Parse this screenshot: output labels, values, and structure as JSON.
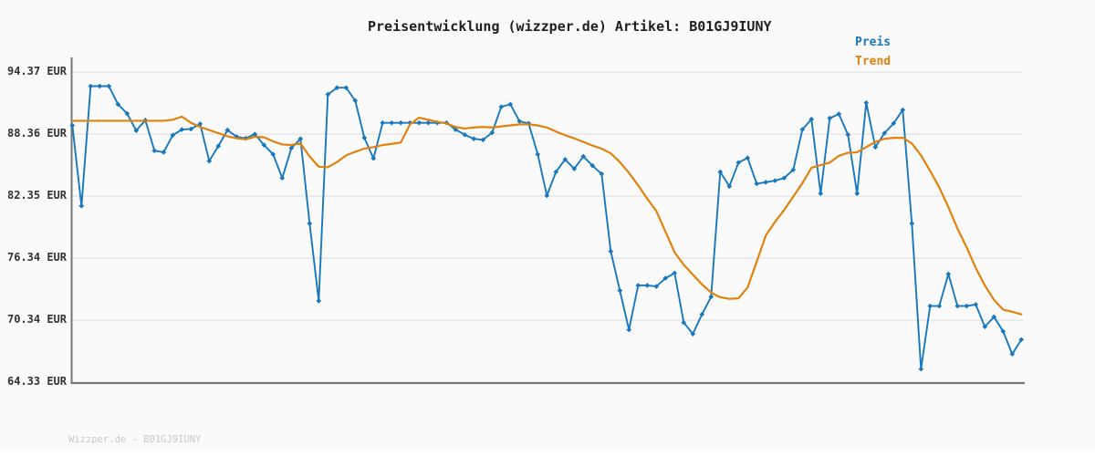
{
  "title": "Preisentwicklung (wizzper.de) Artikel: B01GJ9IUNY",
  "footer_watermark": "Wizzper.de - B01GJ9IUNY",
  "legend": {
    "price_label": "Preis",
    "trend_label": "Trend"
  },
  "colors": {
    "price": "#1878be",
    "trend": "#e2820d",
    "axis": "#757575",
    "grid": "#e6e6e6",
    "background": "#fafafa",
    "title_text": "#1f1f1f",
    "tick_text": "#333333",
    "watermark_text": "#c9c9c9"
  },
  "chart_data": {
    "type": "line",
    "title": "Preisentwicklung (wizzper.de) Artikel: B01GJ9IUNY",
    "currency": "EUR",
    "grid": true,
    "legend_position": "top-right",
    "ylim": [
      64.33,
      94.37
    ],
    "yticks": [
      "94.37 EUR",
      "88.36 EUR",
      "82.35 EUR",
      "76.34 EUR",
      "70.34 EUR",
      "64.33 EUR"
    ],
    "ytick_values": [
      94.37,
      88.36,
      82.35,
      76.34,
      70.34,
      64.33
    ],
    "series": [
      {
        "name": "Preis",
        "color": "#1878be",
        "marker": "diamond",
        "values": [
          89.2,
          81.4,
          93.0,
          93.0,
          93.0,
          91.25,
          90.35,
          88.7,
          89.7,
          86.75,
          86.6,
          88.25,
          88.8,
          88.85,
          89.35,
          85.75,
          87.2,
          88.75,
          88.1,
          87.95,
          88.35,
          87.3,
          86.4,
          84.1,
          87.0,
          87.9,
          79.7,
          72.2,
          92.2,
          92.85,
          92.85,
          91.6,
          88.0,
          86.0,
          89.45,
          89.45,
          89.45,
          89.45,
          89.45,
          89.45,
          89.45,
          89.45,
          88.8,
          88.3,
          87.9,
          87.8,
          88.5,
          91.0,
          91.25,
          89.6,
          89.4,
          86.4,
          82.4,
          84.7,
          85.9,
          85.0,
          86.2,
          85.3,
          84.5,
          77.0,
          73.2,
          69.4,
          73.7,
          73.7,
          73.6,
          74.4,
          74.9,
          70.1,
          69.0,
          70.9,
          72.6,
          84.7,
          83.3,
          85.6,
          86.05,
          83.55,
          83.7,
          83.85,
          84.1,
          84.9,
          88.8,
          89.8,
          82.6,
          89.9,
          90.3,
          88.3,
          82.6,
          91.4,
          87.1,
          88.45,
          89.4,
          90.7,
          79.7,
          65.6,
          71.7,
          71.7,
          74.8,
          71.7,
          71.7,
          71.85,
          69.7,
          70.65,
          69.25,
          67.05,
          68.45
        ]
      },
      {
        "name": "Trend",
        "color": "#e2820d",
        "marker": "none",
        "values": [
          89.65,
          89.65,
          89.65,
          89.65,
          89.65,
          89.65,
          89.65,
          89.65,
          89.65,
          89.65,
          89.65,
          89.75,
          90.05,
          89.45,
          89.05,
          88.75,
          88.45,
          88.15,
          87.95,
          87.85,
          88.1,
          88.05,
          87.65,
          87.35,
          87.3,
          87.45,
          86.2,
          85.2,
          85.15,
          85.65,
          86.3,
          86.65,
          86.95,
          87.1,
          87.3,
          87.4,
          87.55,
          89.3,
          89.95,
          89.75,
          89.55,
          89.4,
          89.05,
          88.9,
          89.0,
          89.05,
          89.0,
          89.1,
          89.2,
          89.3,
          89.3,
          89.2,
          89.0,
          88.6,
          88.25,
          87.95,
          87.6,
          87.25,
          86.95,
          86.5,
          85.65,
          84.6,
          83.4,
          82.1,
          80.9,
          78.9,
          76.9,
          75.7,
          74.75,
          73.8,
          73.0,
          72.55,
          72.4,
          72.45,
          73.5,
          76.0,
          78.55,
          79.85,
          81.0,
          82.3,
          83.6,
          85.1,
          85.35,
          85.6,
          86.25,
          86.55,
          86.6,
          87.1,
          87.6,
          87.9,
          88.0,
          88.0,
          87.45,
          86.3,
          84.8,
          83.2,
          81.3,
          79.2,
          77.4,
          75.4,
          73.7,
          72.3,
          71.35,
          71.15,
          70.9
        ]
      }
    ]
  }
}
